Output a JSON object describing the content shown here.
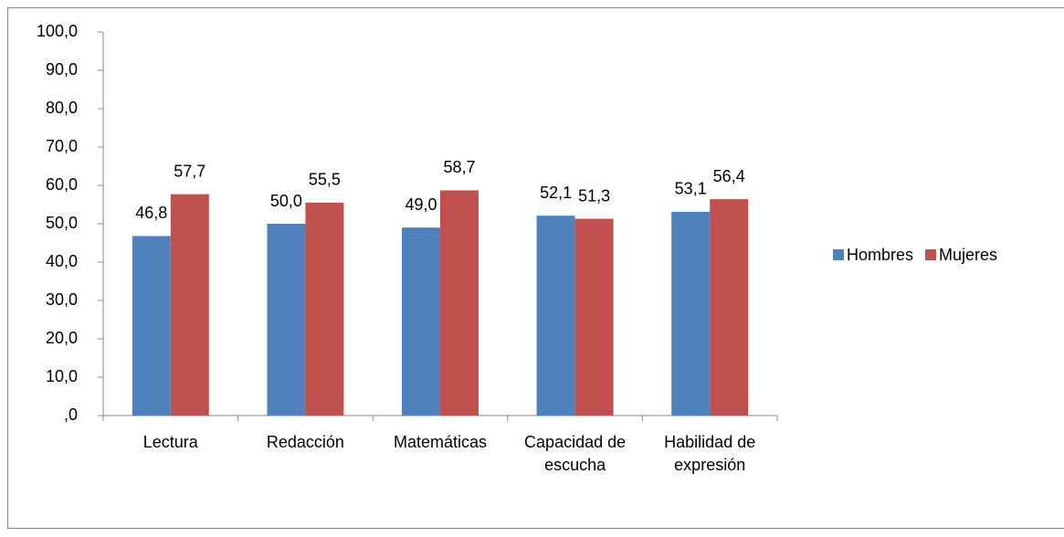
{
  "chart_data": {
    "type": "bar",
    "categories": [
      "Lectura",
      "Redacción",
      "Matemáticas",
      "Capacidad de escucha",
      "Habilidad de expresión"
    ],
    "series": [
      {
        "name": "Hombres",
        "color": "#4f81bd",
        "values": [
          46.8,
          50.0,
          49.0,
          52.1,
          53.1
        ],
        "value_labels": [
          "46,8",
          "50,0",
          "49,0",
          "52,1",
          "53,1"
        ]
      },
      {
        "name": "Mujeres",
        "color": "#c0504d",
        "values": [
          57.7,
          55.5,
          58.7,
          51.3,
          56.4
        ],
        "value_labels": [
          "57,7",
          "55,5",
          "58,7",
          "51,3",
          "56,4"
        ]
      }
    ],
    "ylim": [
      0,
      100
    ],
    "yticks": [
      {
        "value": 0,
        "label": ",0"
      },
      {
        "value": 10,
        "label": "10,0"
      },
      {
        "value": 20,
        "label": "20,0"
      },
      {
        "value": 30,
        "label": "30,0"
      },
      {
        "value": 40,
        "label": "40,0"
      },
      {
        "value": 50,
        "label": "50,0"
      },
      {
        "value": 60,
        "label": "60,0"
      },
      {
        "value": 70,
        "label": "70,0"
      },
      {
        "value": 80,
        "label": "80,0"
      },
      {
        "value": 90,
        "label": "90,0"
      },
      {
        "value": 100,
        "label": "100,0"
      }
    ],
    "grid": false,
    "legend": "right"
  }
}
